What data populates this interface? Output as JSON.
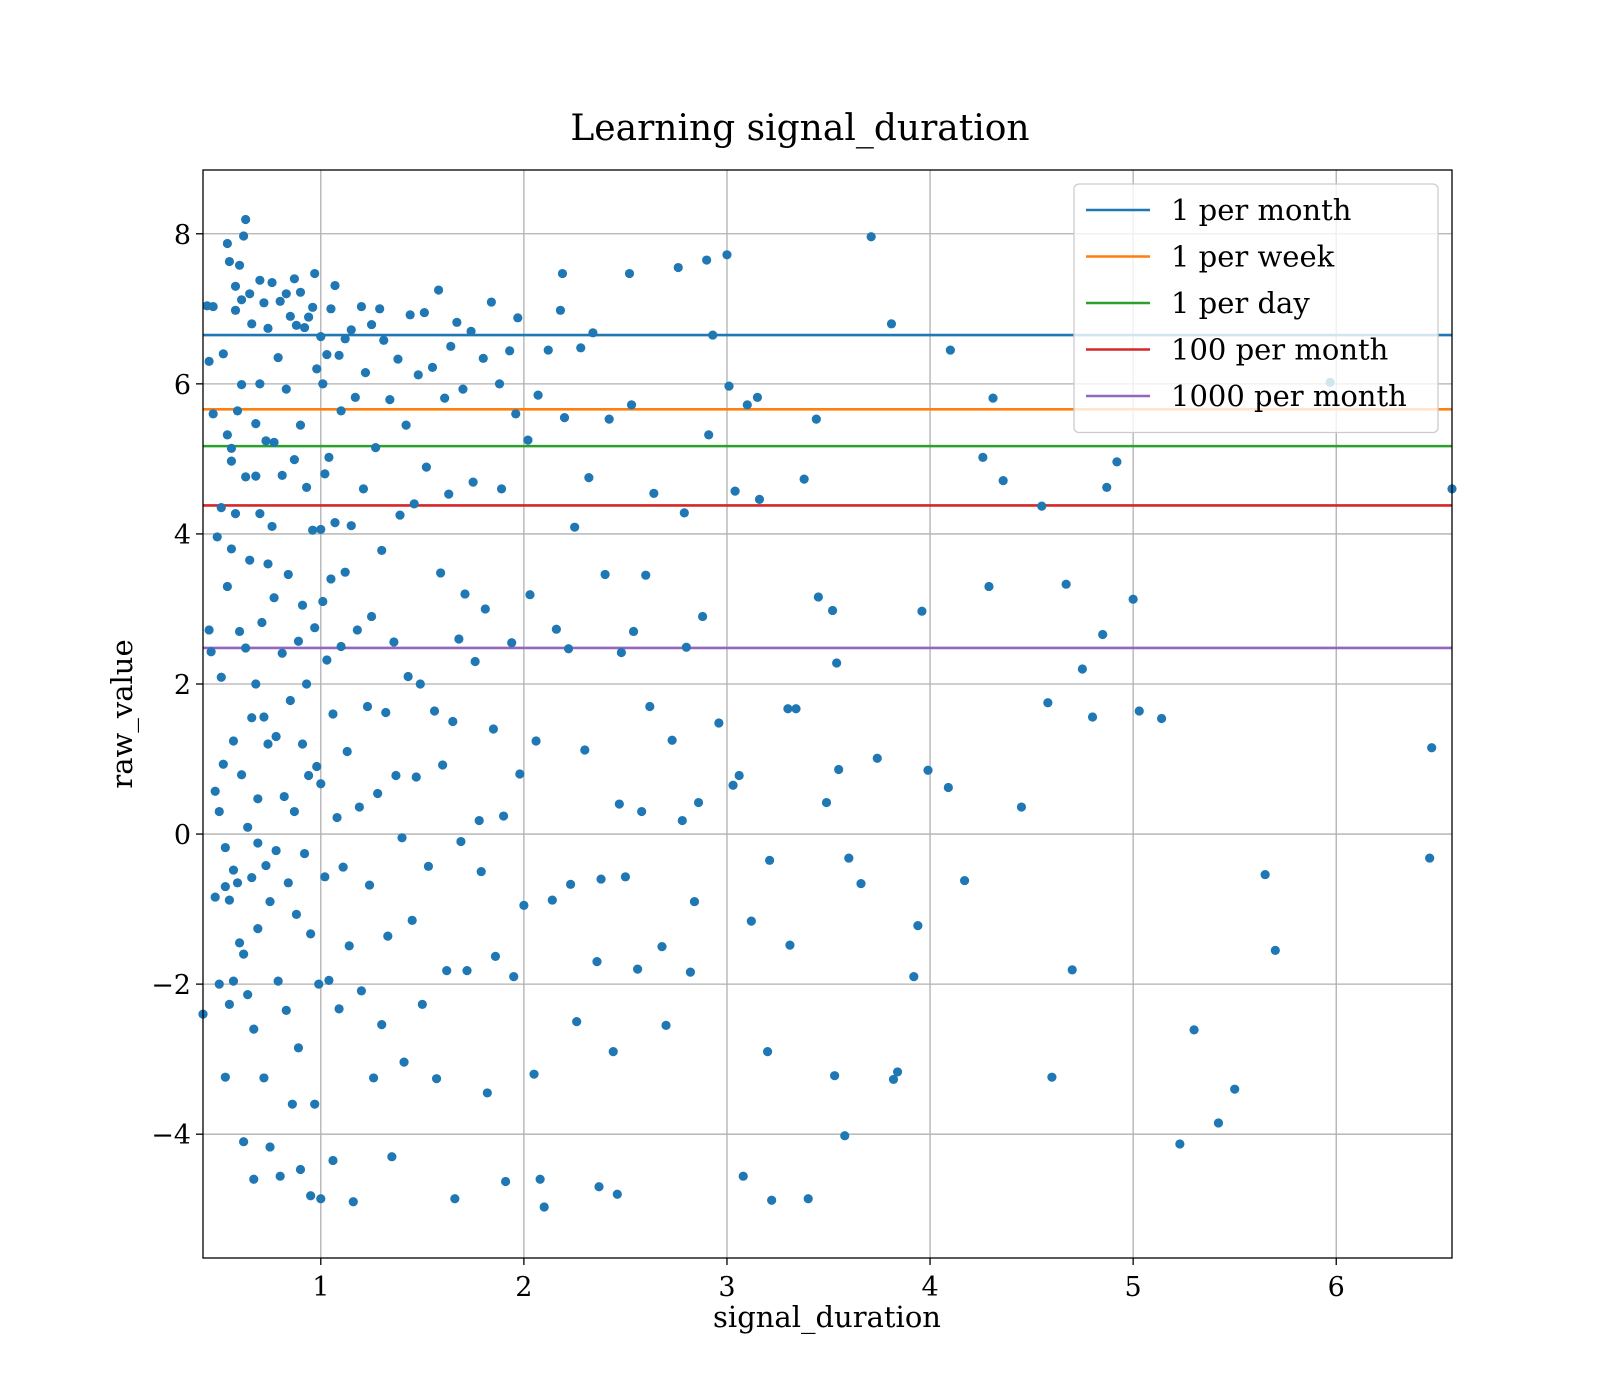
{
  "chart_data": {
    "type": "scatter",
    "title": "Learning signal_duration",
    "xlabel": "signal_duration",
    "ylabel": "raw_value",
    "xlim": [
      0.42,
      6.57
    ],
    "ylim": [
      -5.65,
      8.85
    ],
    "xticks": [
      1,
      2,
      3,
      4,
      5,
      6
    ],
    "yticks": [
      -4,
      -2,
      0,
      2,
      4,
      6,
      8
    ],
    "grid": true,
    "legend_position": "top-right",
    "marker_color": "#1f77b4",
    "hlines": [
      {
        "name": "1 per month",
        "y": 6.65,
        "color": "#1f77b4"
      },
      {
        "name": "1 per week",
        "y": 5.66,
        "color": "#ff7f0e"
      },
      {
        "name": "1 per day",
        "y": 5.17,
        "color": "#2ca02c"
      },
      {
        "name": "100 per month",
        "y": 4.38,
        "color": "#d62728"
      },
      {
        "name": "1000 per month",
        "y": 2.48,
        "color": "#9467bd"
      }
    ],
    "points": [
      [
        0.42,
        -2.4
      ],
      [
        0.44,
        7.04
      ],
      [
        0.45,
        6.3
      ],
      [
        0.45,
        2.72
      ],
      [
        0.46,
        2.43
      ],
      [
        0.47,
        7.03
      ],
      [
        0.47,
        5.6
      ],
      [
        0.48,
        0.57
      ],
      [
        0.48,
        -0.84
      ],
      [
        0.49,
        3.96
      ],
      [
        0.5,
        0.3
      ],
      [
        0.5,
        -2.0
      ],
      [
        0.51,
        4.35
      ],
      [
        0.51,
        2.09
      ],
      [
        0.52,
        6.4
      ],
      [
        0.52,
        0.93
      ],
      [
        0.53,
        -0.18
      ],
      [
        0.53,
        -0.7
      ],
      [
        0.53,
        -3.24
      ],
      [
        0.54,
        7.87
      ],
      [
        0.54,
        5.32
      ],
      [
        0.54,
        3.3
      ],
      [
        0.55,
        7.63
      ],
      [
        0.55,
        -0.88
      ],
      [
        0.55,
        -2.27
      ],
      [
        0.56,
        5.14
      ],
      [
        0.56,
        4.97
      ],
      [
        0.56,
        3.8
      ],
      [
        0.57,
        1.24
      ],
      [
        0.57,
        -0.48
      ],
      [
        0.57,
        -1.96
      ],
      [
        0.58,
        7.3
      ],
      [
        0.58,
        6.98
      ],
      [
        0.58,
        4.27
      ],
      [
        0.59,
        5.64
      ],
      [
        0.59,
        -0.65
      ],
      [
        0.6,
        7.58
      ],
      [
        0.6,
        2.7
      ],
      [
        0.6,
        -1.45
      ],
      [
        0.61,
        7.12
      ],
      [
        0.61,
        5.99
      ],
      [
        0.61,
        0.79
      ],
      [
        0.62,
        7.97
      ],
      [
        0.62,
        -1.6
      ],
      [
        0.62,
        -4.1
      ],
      [
        0.63,
        8.19
      ],
      [
        0.63,
        4.76
      ],
      [
        0.63,
        2.48
      ],
      [
        0.64,
        0.09
      ],
      [
        0.64,
        -2.14
      ],
      [
        0.65,
        7.2
      ],
      [
        0.65,
        3.65
      ],
      [
        0.66,
        6.8
      ],
      [
        0.66,
        1.55
      ],
      [
        0.66,
        -0.58
      ],
      [
        0.67,
        -4.6
      ],
      [
        0.67,
        -2.6
      ],
      [
        0.68,
        5.47
      ],
      [
        0.68,
        4.77
      ],
      [
        0.68,
        2.0
      ],
      [
        0.69,
        0.47
      ],
      [
        0.69,
        -0.12
      ],
      [
        0.69,
        -1.26
      ],
      [
        0.7,
        7.38
      ],
      [
        0.7,
        6.0
      ],
      [
        0.7,
        4.27
      ],
      [
        0.71,
        2.82
      ],
      [
        0.72,
        7.08
      ],
      [
        0.72,
        1.56
      ],
      [
        0.72,
        -3.25
      ],
      [
        0.73,
        5.24
      ],
      [
        0.73,
        -0.42
      ],
      [
        0.74,
        6.74
      ],
      [
        0.74,
        3.6
      ],
      [
        0.74,
        1.2
      ],
      [
        0.75,
        -0.9
      ],
      [
        0.75,
        -4.17
      ],
      [
        0.76,
        7.35
      ],
      [
        0.76,
        4.1
      ],
      [
        0.77,
        5.22
      ],
      [
        0.77,
        3.15
      ],
      [
        0.78,
        1.3
      ],
      [
        0.78,
        -0.22
      ],
      [
        0.79,
        6.35
      ],
      [
        0.79,
        -1.96
      ],
      [
        0.8,
        7.1
      ],
      [
        0.8,
        -4.56
      ],
      [
        0.81,
        4.78
      ],
      [
        0.81,
        2.41
      ],
      [
        0.82,
        0.5
      ],
      [
        0.83,
        7.2
      ],
      [
        0.83,
        5.93
      ],
      [
        0.83,
        -2.35
      ],
      [
        0.84,
        3.46
      ],
      [
        0.84,
        -0.65
      ],
      [
        0.85,
        6.9
      ],
      [
        0.85,
        1.78
      ],
      [
        0.86,
        -3.6
      ],
      [
        0.87,
        7.4
      ],
      [
        0.87,
        4.99
      ],
      [
        0.87,
        0.3
      ],
      [
        0.88,
        6.78
      ],
      [
        0.88,
        -1.07
      ],
      [
        0.89,
        2.57
      ],
      [
        0.89,
        -2.85
      ],
      [
        0.9,
        7.22
      ],
      [
        0.9,
        5.45
      ],
      [
        0.9,
        -4.47
      ],
      [
        0.91,
        3.05
      ],
      [
        0.91,
        1.2
      ],
      [
        0.92,
        6.75
      ],
      [
        0.92,
        -0.26
      ],
      [
        0.93,
        4.62
      ],
      [
        0.93,
        2.0
      ],
      [
        0.94,
        6.89
      ],
      [
        0.94,
        0.78
      ],
      [
        0.95,
        -1.33
      ],
      [
        0.95,
        -4.82
      ],
      [
        0.96,
        7.02
      ],
      [
        0.96,
        4.05
      ],
      [
        0.97,
        7.47
      ],
      [
        0.97,
        2.75
      ],
      [
        0.97,
        -3.6
      ],
      [
        0.98,
        6.2
      ],
      [
        0.98,
        0.9
      ],
      [
        0.99,
        -2.0
      ],
      [
        1.0,
        6.63
      ],
      [
        1.0,
        4.06
      ],
      [
        1.0,
        0.67
      ],
      [
        1.0,
        -4.86
      ],
      [
        1.01,
        6.0
      ],
      [
        1.01,
        3.1
      ],
      [
        1.02,
        4.8
      ],
      [
        1.02,
        -0.57
      ],
      [
        1.03,
        6.39
      ],
      [
        1.03,
        2.32
      ],
      [
        1.04,
        5.02
      ],
      [
        1.04,
        -1.95
      ],
      [
        1.05,
        7.0
      ],
      [
        1.05,
        3.4
      ],
      [
        1.06,
        1.6
      ],
      [
        1.06,
        -4.35
      ],
      [
        1.07,
        7.31
      ],
      [
        1.07,
        4.15
      ],
      [
        1.08,
        0.22
      ],
      [
        1.09,
        6.38
      ],
      [
        1.09,
        -2.33
      ],
      [
        1.1,
        5.64
      ],
      [
        1.1,
        2.5
      ],
      [
        1.11,
        -0.44
      ],
      [
        1.12,
        6.6
      ],
      [
        1.12,
        3.49
      ],
      [
        1.13,
        1.1
      ],
      [
        1.14,
        -1.49
      ],
      [
        1.15,
        6.72
      ],
      [
        1.15,
        4.11
      ],
      [
        1.16,
        -4.9
      ],
      [
        1.17,
        5.82
      ],
      [
        1.18,
        2.72
      ],
      [
        1.19,
        0.36
      ],
      [
        1.2,
        7.03
      ],
      [
        1.2,
        -2.09
      ],
      [
        1.21,
        4.6
      ],
      [
        1.22,
        6.15
      ],
      [
        1.23,
        1.7
      ],
      [
        1.24,
        -0.68
      ],
      [
        1.25,
        6.79
      ],
      [
        1.25,
        2.9
      ],
      [
        1.26,
        -3.25
      ],
      [
        1.27,
        5.15
      ],
      [
        1.28,
        0.54
      ],
      [
        1.29,
        7.0
      ],
      [
        1.3,
        3.78
      ],
      [
        1.3,
        -2.54
      ],
      [
        1.31,
        6.58
      ],
      [
        1.32,
        1.62
      ],
      [
        1.33,
        -1.36
      ],
      [
        1.34,
        5.79
      ],
      [
        1.35,
        -4.3
      ],
      [
        1.36,
        2.56
      ],
      [
        1.37,
        0.78
      ],
      [
        1.38,
        6.33
      ],
      [
        1.39,
        4.25
      ],
      [
        1.4,
        -0.05
      ],
      [
        1.41,
        -3.04
      ],
      [
        1.42,
        5.45
      ],
      [
        1.43,
        2.1
      ],
      [
        1.44,
        6.92
      ],
      [
        1.45,
        -1.15
      ],
      [
        1.46,
        4.4
      ],
      [
        1.47,
        0.76
      ],
      [
        1.48,
        6.12
      ],
      [
        1.49,
        2.0
      ],
      [
        1.5,
        -2.27
      ],
      [
        1.51,
        6.95
      ],
      [
        1.52,
        4.89
      ],
      [
        1.53,
        -0.43
      ],
      [
        1.55,
        6.22
      ],
      [
        1.56,
        1.64
      ],
      [
        1.57,
        -3.26
      ],
      [
        1.58,
        7.25
      ],
      [
        1.59,
        3.48
      ],
      [
        1.6,
        0.92
      ],
      [
        1.61,
        5.81
      ],
      [
        1.62,
        -1.82
      ],
      [
        1.63,
        4.53
      ],
      [
        1.64,
        6.5
      ],
      [
        1.65,
        1.5
      ],
      [
        1.66,
        -4.86
      ],
      [
        1.67,
        6.82
      ],
      [
        1.68,
        2.6
      ],
      [
        1.69,
        -0.1
      ],
      [
        1.7,
        5.93
      ],
      [
        1.71,
        3.2
      ],
      [
        1.72,
        -1.82
      ],
      [
        1.74,
        6.7
      ],
      [
        1.75,
        4.69
      ],
      [
        1.76,
        2.3
      ],
      [
        1.78,
        0.18
      ],
      [
        1.79,
        -0.5
      ],
      [
        1.8,
        6.34
      ],
      [
        1.81,
        3.0
      ],
      [
        1.82,
        -3.45
      ],
      [
        1.84,
        7.09
      ],
      [
        1.85,
        1.4
      ],
      [
        1.86,
        -1.63
      ],
      [
        1.88,
        6.0
      ],
      [
        1.89,
        4.6
      ],
      [
        1.9,
        0.24
      ],
      [
        1.91,
        -4.63
      ],
      [
        1.93,
        6.44
      ],
      [
        1.94,
        2.55
      ],
      [
        1.95,
        -1.9
      ],
      [
        1.96,
        5.6
      ],
      [
        1.97,
        6.88
      ],
      [
        1.98,
        0.8
      ],
      [
        2.0,
        -0.95
      ],
      [
        2.02,
        5.25
      ],
      [
        2.03,
        3.19
      ],
      [
        2.05,
        -3.2
      ],
      [
        2.06,
        1.24
      ],
      [
        2.07,
        5.85
      ],
      [
        2.08,
        -4.6
      ],
      [
        2.1,
        -4.97
      ],
      [
        2.12,
        6.45
      ],
      [
        2.14,
        -0.88
      ],
      [
        2.16,
        2.73
      ],
      [
        2.18,
        6.98
      ],
      [
        2.19,
        7.47
      ],
      [
        2.2,
        5.55
      ],
      [
        2.22,
        2.47
      ],
      [
        2.23,
        -0.67
      ],
      [
        2.25,
        4.09
      ],
      [
        2.26,
        -2.5
      ],
      [
        2.28,
        6.48
      ],
      [
        2.3,
        1.12
      ],
      [
        2.32,
        4.75
      ],
      [
        2.34,
        6.68
      ],
      [
        2.36,
        -1.7
      ],
      [
        2.37,
        -4.7
      ],
      [
        2.38,
        -0.6
      ],
      [
        2.4,
        3.46
      ],
      [
        2.42,
        5.53
      ],
      [
        2.44,
        -2.9
      ],
      [
        2.46,
        -4.8
      ],
      [
        2.47,
        0.4
      ],
      [
        2.48,
        2.42
      ],
      [
        2.5,
        -0.57
      ],
      [
        2.52,
        7.47
      ],
      [
        2.53,
        5.72
      ],
      [
        2.54,
        2.7
      ],
      [
        2.56,
        -1.8
      ],
      [
        2.58,
        0.3
      ],
      [
        2.6,
        3.45
      ],
      [
        2.62,
        1.7
      ],
      [
        2.64,
        4.54
      ],
      [
        2.68,
        -1.5
      ],
      [
        2.7,
        -2.55
      ],
      [
        2.73,
        1.25
      ],
      [
        2.76,
        7.55
      ],
      [
        2.78,
        0.18
      ],
      [
        2.79,
        4.28
      ],
      [
        2.8,
        2.49
      ],
      [
        2.82,
        -1.84
      ],
      [
        2.84,
        -0.9
      ],
      [
        2.86,
        0.42
      ],
      [
        2.88,
        2.9
      ],
      [
        2.9,
        7.65
      ],
      [
        2.91,
        5.32
      ],
      [
        2.93,
        6.65
      ],
      [
        2.96,
        1.48
      ],
      [
        3.0,
        7.72
      ],
      [
        3.01,
        5.97
      ],
      [
        3.03,
        0.65
      ],
      [
        3.04,
        4.57
      ],
      [
        3.06,
        0.78
      ],
      [
        3.08,
        -4.56
      ],
      [
        3.1,
        5.72
      ],
      [
        3.12,
        -1.16
      ],
      [
        3.15,
        5.82
      ],
      [
        3.16,
        4.46
      ],
      [
        3.2,
        -2.9
      ],
      [
        3.21,
        -0.35
      ],
      [
        3.22,
        -4.88
      ],
      [
        3.3,
        1.67
      ],
      [
        3.31,
        -1.48
      ],
      [
        3.34,
        1.67
      ],
      [
        3.38,
        4.73
      ],
      [
        3.4,
        -4.86
      ],
      [
        3.44,
        5.53
      ],
      [
        3.45,
        3.16
      ],
      [
        3.49,
        0.42
      ],
      [
        3.52,
        2.98
      ],
      [
        3.53,
        -3.22
      ],
      [
        3.54,
        2.28
      ],
      [
        3.55,
        0.86
      ],
      [
        3.58,
        -4.02
      ],
      [
        3.6,
        -0.32
      ],
      [
        3.66,
        -0.66
      ],
      [
        3.71,
        7.96
      ],
      [
        3.74,
        1.01
      ],
      [
        3.81,
        6.8
      ],
      [
        3.82,
        -3.27
      ],
      [
        3.84,
        -3.17
      ],
      [
        3.92,
        -1.9
      ],
      [
        3.94,
        -1.22
      ],
      [
        3.96,
        2.97
      ],
      [
        3.99,
        0.85
      ],
      [
        4.09,
        0.62
      ],
      [
        4.1,
        6.45
      ],
      [
        4.17,
        -0.62
      ],
      [
        4.26,
        5.02
      ],
      [
        4.29,
        3.3
      ],
      [
        4.31,
        5.81
      ],
      [
        4.36,
        4.71
      ],
      [
        4.45,
        0.36
      ],
      [
        4.55,
        4.37
      ],
      [
        4.58,
        1.75
      ],
      [
        4.6,
        -3.24
      ],
      [
        4.67,
        3.33
      ],
      [
        4.7,
        -1.81
      ],
      [
        4.75,
        2.2
      ],
      [
        4.8,
        1.56
      ],
      [
        4.85,
        2.66
      ],
      [
        4.87,
        4.62
      ],
      [
        4.92,
        4.96
      ],
      [
        5.0,
        3.13
      ],
      [
        5.03,
        1.64
      ],
      [
        5.14,
        1.54
      ],
      [
        5.23,
        -4.13
      ],
      [
        5.3,
        -2.61
      ],
      [
        5.42,
        -3.85
      ],
      [
        5.5,
        -3.4
      ],
      [
        5.65,
        -0.54
      ],
      [
        5.7,
        -1.55
      ],
      [
        5.97,
        6.02
      ],
      [
        6.46,
        -0.32
      ],
      [
        6.47,
        1.15
      ],
      [
        6.57,
        4.6
      ]
    ]
  }
}
